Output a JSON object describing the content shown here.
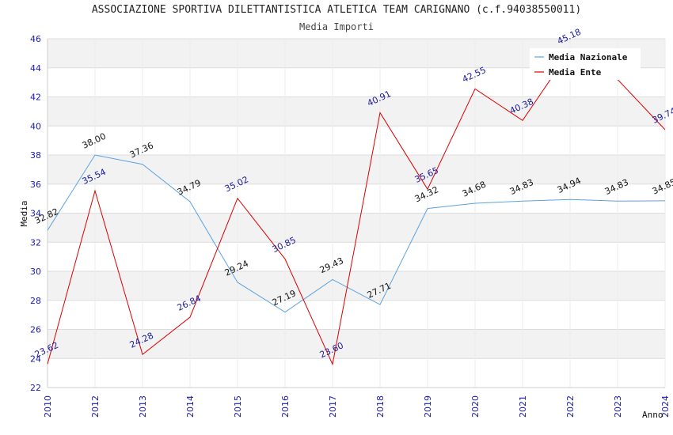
{
  "chart_data": {
    "type": "line",
    "title": "ASSOCIAZIONE SPORTIVA DILETTANTISTICA ATLETICA TEAM CARIGNANO (c.f.94038550011)",
    "subtitle": "Media Importi",
    "xlabel": "Anno",
    "ylabel": "Media",
    "ylim": [
      22,
      46
    ],
    "yticks": [
      22,
      24,
      26,
      28,
      30,
      32,
      34,
      36,
      38,
      40,
      42,
      44,
      46
    ],
    "categories": [
      "2010",
      "2012",
      "2013",
      "2014",
      "2015",
      "2016",
      "2017",
      "2018",
      "2019",
      "2020",
      "2021",
      "2022",
      "2023",
      "2024"
    ],
    "legend_position": "top-right",
    "grid": "horizontal bands",
    "series": [
      {
        "name": "Media Nazionale",
        "color": "#5ba3e0",
        "values": [
          32.82,
          38.0,
          37.36,
          34.79,
          29.24,
          27.19,
          29.43,
          27.71,
          34.32,
          34.68,
          34.83,
          34.94,
          34.83,
          34.85
        ],
        "labels": [
          "32.82",
          "38.00",
          "37.36",
          "34.79",
          "29.24",
          "27.19",
          "29.43",
          "27.71",
          "34.32",
          "34.68",
          "34.83",
          "34.94",
          "34.83",
          "34.85"
        ]
      },
      {
        "name": "Media Ente",
        "color": "#dd0000",
        "values": [
          23.62,
          35.54,
          24.28,
          26.84,
          35.02,
          30.85,
          23.6,
          40.91,
          35.65,
          42.55,
          40.38,
          45.18,
          43.2,
          39.74
        ],
        "labels": [
          "23.62",
          "35.54",
          "24.28",
          "26.84",
          "35.02",
          "30.85",
          "23.60",
          "40.91",
          "35.65",
          "42.55",
          "40.38",
          "45.18",
          "",
          "39.74"
        ]
      }
    ]
  }
}
